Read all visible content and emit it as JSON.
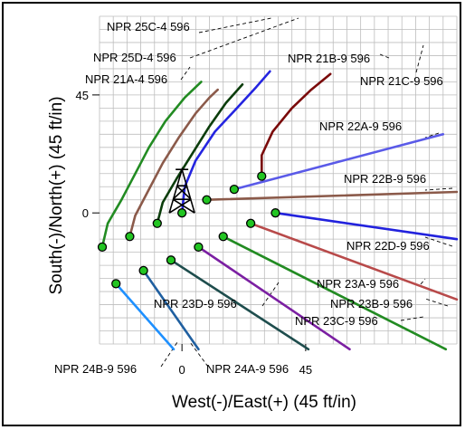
{
  "chart_data": {
    "type": "line",
    "xlabel": "West(-)/East(+) (45 ft/in)",
    "ylabel": "South(-)/North(+) (45 ft/in)",
    "xlim": [
      -30,
      100
    ],
    "ylim": [
      -50,
      75
    ],
    "x_ticks": [
      0,
      45
    ],
    "y_ticks": [
      0,
      45
    ],
    "grid": true,
    "rig_icon": "drilling-rig-icon",
    "series": [
      {
        "name": "NPR 25C-4 596",
        "color": "#228B22",
        "start": [
          -29,
          -13
        ],
        "points": [
          [
            -29,
            -13
          ],
          [
            -27,
            -4
          ],
          [
            -22,
            5
          ],
          [
            -17,
            15
          ],
          [
            -12,
            25
          ],
          [
            -6,
            35
          ],
          [
            1,
            44
          ],
          [
            7,
            50
          ]
        ],
        "dot": true
      },
      {
        "name": "NPR 25D-4 596",
        "color": "#8B5A4A",
        "start": [
          -19,
          -9
        ],
        "points": [
          [
            -19,
            -9
          ],
          [
            -17,
            -1
          ],
          [
            -12,
            9
          ],
          [
            -7,
            19
          ],
          [
            -1,
            29
          ],
          [
            5,
            38
          ],
          [
            10,
            44
          ],
          [
            13,
            47
          ]
        ],
        "dot": true
      },
      {
        "name": "NPR 21A-4 596",
        "color": "#0B3D0B",
        "start": [
          -9,
          -4
        ],
        "points": [
          [
            -9,
            -4
          ],
          [
            -7,
            4
          ],
          [
            -2,
            13
          ],
          [
            4,
            23
          ],
          [
            10,
            33
          ],
          [
            16,
            42
          ],
          [
            22,
            49
          ]
        ],
        "dot": true
      },
      {
        "name": "NPR 21B-9 596",
        "color": "#2424E0",
        "start": [
          0,
          0
        ],
        "points": [
          [
            0,
            0
          ],
          [
            1,
            10
          ],
          [
            5,
            20
          ],
          [
            12,
            31
          ],
          [
            20,
            40
          ],
          [
            27,
            48
          ],
          [
            32,
            54
          ]
        ],
        "dot": true
      },
      {
        "name": "NPR 21C-9 596",
        "color": "#7A0A0A",
        "start": [
          29,
          14
        ],
        "points": [
          [
            29,
            14
          ],
          [
            29,
            22
          ],
          [
            33,
            31
          ],
          [
            40,
            40
          ],
          [
            47,
            47
          ],
          [
            54,
            53
          ]
        ],
        "dot": true
      },
      {
        "name": "NPR 22A-9 596",
        "color": "#5A5AE8",
        "start": [
          19,
          9
        ],
        "points": [
          [
            19,
            9
          ],
          [
            95,
            30
          ]
        ],
        "dot": true
      },
      {
        "name": "NPR 22B-9 596",
        "color": "#8B5A4A",
        "start": [
          9,
          5
        ],
        "points": [
          [
            9,
            5
          ],
          [
            100,
            8
          ]
        ],
        "dot": true
      },
      {
        "name": "NPR 22D-9 596",
        "color": "#2222DD",
        "start": [
          34,
          0
        ],
        "points": [
          [
            34,
            0
          ],
          [
            100,
            -10
          ]
        ],
        "dot": true
      },
      {
        "name": "NPR 23A-9 596",
        "color": "#B84A4A",
        "start": [
          25,
          -4
        ],
        "points": [
          [
            25,
            -4
          ],
          [
            100,
            -33
          ]
        ],
        "dot": true
      },
      {
        "name": "NPR 23B-9 596",
        "color": "#228B22",
        "start": [
          15,
          -9
        ],
        "points": [
          [
            15,
            -9
          ],
          [
            96,
            -52
          ]
        ],
        "dot": true
      },
      {
        "name": "NPR 23C-9 596",
        "color": "#7B1FA2",
        "start": [
          6,
          -13
        ],
        "points": [
          [
            6,
            -13
          ],
          [
            61,
            -52
          ]
        ],
        "dot": true
      },
      {
        "name": "NPR 23D-9 596",
        "color": "#1E4D4D",
        "start": [
          -4,
          -18
        ],
        "points": [
          [
            -4,
            -18
          ],
          [
            46,
            -52
          ]
        ],
        "dot": true
      },
      {
        "name": "NPR 24A-9 596",
        "color": "#1F5FA0",
        "start": [
          -14,
          -22
        ],
        "points": [
          [
            -14,
            -22
          ],
          [
            6,
            -52
          ]
        ],
        "dot": true
      },
      {
        "name": "NPR 24B-9 596",
        "color": "#1E90FF",
        "start": [
          -24,
          -27
        ],
        "points": [
          [
            -24,
            -27
          ],
          [
            -3,
            -52
          ]
        ],
        "dot": true
      }
    ],
    "annotations": [
      {
        "text": "NPR 25C-4 596"
      },
      {
        "text": "NPR 25D-4 596"
      },
      {
        "text": "NPR 21A-4 596"
      },
      {
        "text": "NPR 21B-9 596"
      },
      {
        "text": "NPR 21C-9 596"
      },
      {
        "text": "NPR 22A-9 596"
      },
      {
        "text": "NPR 22B-9 596"
      },
      {
        "text": "NPR 22D-9 596"
      },
      {
        "text": "NPR 23A-9 596"
      },
      {
        "text": "NPR 23B-9 596"
      },
      {
        "text": "NPR 23C-9 596"
      },
      {
        "text": "NPR 23D-9 596"
      },
      {
        "text": "NPR 24A-9 596"
      },
      {
        "text": "NPR 24B-9 596"
      }
    ]
  }
}
